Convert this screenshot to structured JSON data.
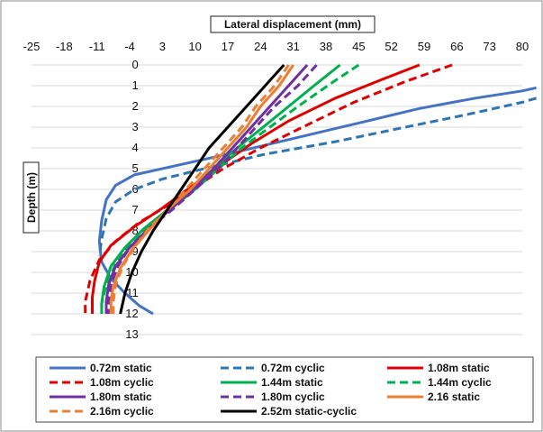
{
  "chart_data": {
    "type": "line",
    "xlabel": "Lateral displacement (mm)",
    "ylabel": "Depth (m)",
    "xlim": [
      -25,
      80
    ],
    "ylim": [
      13,
      0
    ],
    "x_ticks": [
      -25,
      -18,
      -11,
      -4,
      3,
      10,
      17,
      24,
      31,
      38,
      45,
      52,
      59,
      66,
      73,
      80
    ],
    "y_ticks": [
      0,
      1,
      2,
      3,
      4,
      5,
      6,
      7,
      8,
      9,
      10,
      11,
      12,
      13
    ],
    "grid": "horizontal",
    "legend_position": "bottom",
    "series": [
      {
        "name": "0.72m static",
        "color": "#4472C4",
        "dash": "solid",
        "width": 3,
        "points": [
          [
            83,
            1.1
          ],
          [
            80,
            1.25
          ],
          [
            70,
            1.6
          ],
          [
            58,
            2.1
          ],
          [
            45,
            2.8
          ],
          [
            30,
            3.6
          ],
          [
            15,
            4.4
          ],
          [
            5,
            4.9
          ],
          [
            -3,
            5.3
          ],
          [
            -7,
            5.8
          ],
          [
            -9,
            6.5
          ],
          [
            -10,
            7.5
          ],
          [
            -10.5,
            8.5
          ],
          [
            -10,
            9.5
          ],
          [
            -8,
            10.3
          ],
          [
            -5,
            11
          ],
          [
            -2,
            11.6
          ],
          [
            1,
            12
          ]
        ]
      },
      {
        "name": "0.72m cyclic",
        "color": "#2E75B6",
        "dash": "dash",
        "width": 3,
        "points": [
          [
            83,
            1.6
          ],
          [
            80,
            1.8
          ],
          [
            68,
            2.4
          ],
          [
            55,
            3.0
          ],
          [
            40,
            3.7
          ],
          [
            25,
            4.3
          ],
          [
            12,
            5.0
          ],
          [
            3,
            5.5
          ],
          [
            -3,
            6.0
          ],
          [
            -7,
            6.6
          ],
          [
            -9,
            7.4
          ],
          [
            -10,
            8.4
          ],
          [
            -10.5,
            9.2
          ]
        ]
      },
      {
        "name": "1.08m static",
        "color": "#E00000",
        "dash": "solid",
        "width": 3,
        "points": [
          [
            58,
            0
          ],
          [
            50,
            0.7
          ],
          [
            40,
            1.6
          ],
          [
            30,
            2.7
          ],
          [
            22,
            3.8
          ],
          [
            15,
            4.9
          ],
          [
            9,
            5.9
          ],
          [
            3,
            6.9
          ],
          [
            -3,
            7.8
          ],
          [
            -8,
            8.7
          ],
          [
            -10.5,
            9.5
          ],
          [
            -11.5,
            10.4
          ],
          [
            -12,
            11.2
          ],
          [
            -12,
            12
          ]
        ]
      },
      {
        "name": "1.08m cyclic",
        "color": "#E00000",
        "dash": "dash",
        "width": 3,
        "points": [
          [
            65,
            0
          ],
          [
            55,
            0.8
          ],
          [
            44,
            1.8
          ],
          [
            33,
            3.0
          ],
          [
            24,
            4.0
          ],
          [
            16,
            5.0
          ],
          [
            10,
            5.9
          ],
          [
            4,
            6.8
          ],
          [
            -2,
            7.6
          ],
          [
            -7,
            8.5
          ],
          [
            -10.5,
            9.4
          ],
          [
            -12.5,
            10.4
          ],
          [
            -13.5,
            11.4
          ],
          [
            -13.5,
            12
          ]
        ]
      },
      {
        "name": "1.44m static",
        "color": "#00B050",
        "dash": "solid",
        "width": 3,
        "points": [
          [
            41,
            0
          ],
          [
            36,
            0.9
          ],
          [
            30,
            2.0
          ],
          [
            24,
            3.1
          ],
          [
            19,
            4.0
          ],
          [
            14,
            5.0
          ],
          [
            9,
            6.0
          ],
          [
            4,
            7.0
          ],
          [
            -1,
            7.9
          ],
          [
            -5,
            8.8
          ],
          [
            -8,
            9.7
          ],
          [
            -9.5,
            10.7
          ],
          [
            -10,
            11.5
          ],
          [
            -10,
            12
          ]
        ]
      },
      {
        "name": "1.44m cyclic",
        "color": "#00B050",
        "dash": "dash",
        "width": 3,
        "points": [
          [
            45,
            0
          ],
          [
            39,
            0.9
          ],
          [
            32,
            2.0
          ],
          [
            26,
            3.0
          ],
          [
            20,
            4.0
          ],
          [
            15,
            5.0
          ],
          [
            10,
            6.0
          ],
          [
            5,
            6.9
          ],
          [
            0,
            7.8
          ],
          [
            -4,
            8.7
          ],
          [
            -7,
            9.6
          ],
          [
            -9,
            10.6
          ],
          [
            -10,
            11.5
          ],
          [
            -10,
            12
          ]
        ]
      },
      {
        "name": "1.80m static",
        "color": "#7030A0",
        "dash": "solid",
        "width": 3,
        "points": [
          [
            34,
            0
          ],
          [
            30,
            1.0
          ],
          [
            26,
            2.0
          ],
          [
            22,
            3.0
          ],
          [
            18,
            4.0
          ],
          [
            14,
            5.0
          ],
          [
            10,
            5.9
          ],
          [
            5,
            6.9
          ],
          [
            0,
            7.9
          ],
          [
            -4,
            8.8
          ],
          [
            -7,
            9.7
          ],
          [
            -8.5,
            10.6
          ],
          [
            -9,
            11.4
          ],
          [
            -9,
            12
          ]
        ]
      },
      {
        "name": "1.80m cyclic",
        "color": "#7030A0",
        "dash": "dash",
        "width": 3,
        "points": [
          [
            36,
            0
          ],
          [
            32,
            1.0
          ],
          [
            27,
            2.0
          ],
          [
            23,
            3.0
          ],
          [
            19,
            4.0
          ],
          [
            15,
            5.0
          ],
          [
            10,
            6.0
          ],
          [
            5,
            7.0
          ],
          [
            0,
            7.9
          ],
          [
            -4,
            8.8
          ],
          [
            -6.5,
            9.7
          ],
          [
            -8,
            10.6
          ],
          [
            -8.5,
            11.4
          ],
          [
            -8.5,
            12
          ]
        ]
      },
      {
        "name": "2.16 static",
        "color": "#ED7D31",
        "dash": "solid",
        "width": 3,
        "points": [
          [
            31,
            0
          ],
          [
            28,
            1.0
          ],
          [
            24,
            2.0
          ],
          [
            21,
            3.0
          ],
          [
            17,
            4.0
          ],
          [
            13,
            5.0
          ],
          [
            9,
            6.0
          ],
          [
            4,
            7.0
          ],
          [
            0,
            8.0
          ],
          [
            -3.5,
            8.9
          ],
          [
            -6,
            9.8
          ],
          [
            -7.5,
            10.7
          ],
          [
            -8,
            11.4
          ],
          [
            -8,
            12
          ]
        ]
      },
      {
        "name": "2.16m cyclic",
        "color": "#ED7D31",
        "dash": "dash",
        "width": 3,
        "points": [
          [
            30,
            0
          ],
          [
            27,
            1.0
          ],
          [
            23,
            2.0
          ],
          [
            20,
            3.0
          ],
          [
            16,
            4.0
          ],
          [
            12,
            5.0
          ],
          [
            8,
            6.0
          ],
          [
            4,
            7.0
          ],
          [
            0,
            7.9
          ],
          [
            -3,
            8.8
          ],
          [
            -5.5,
            9.7
          ],
          [
            -7,
            10.6
          ],
          [
            -7.5,
            11.4
          ],
          [
            -7.5,
            12
          ]
        ]
      },
      {
        "name": "2.52m static-cyclic",
        "color": "#000000",
        "dash": "solid",
        "width": 3,
        "points": [
          [
            29,
            0
          ],
          [
            25,
            1.0
          ],
          [
            21,
            2.0
          ],
          [
            17,
            3.0
          ],
          [
            13,
            4.0
          ],
          [
            10,
            5.0
          ],
          [
            7,
            6.0
          ],
          [
            4,
            7.0
          ],
          [
            1,
            8.0
          ],
          [
            -1.5,
            9.0
          ],
          [
            -3.5,
            10.0
          ],
          [
            -5,
            11.0
          ],
          [
            -6,
            12
          ]
        ]
      }
    ]
  }
}
